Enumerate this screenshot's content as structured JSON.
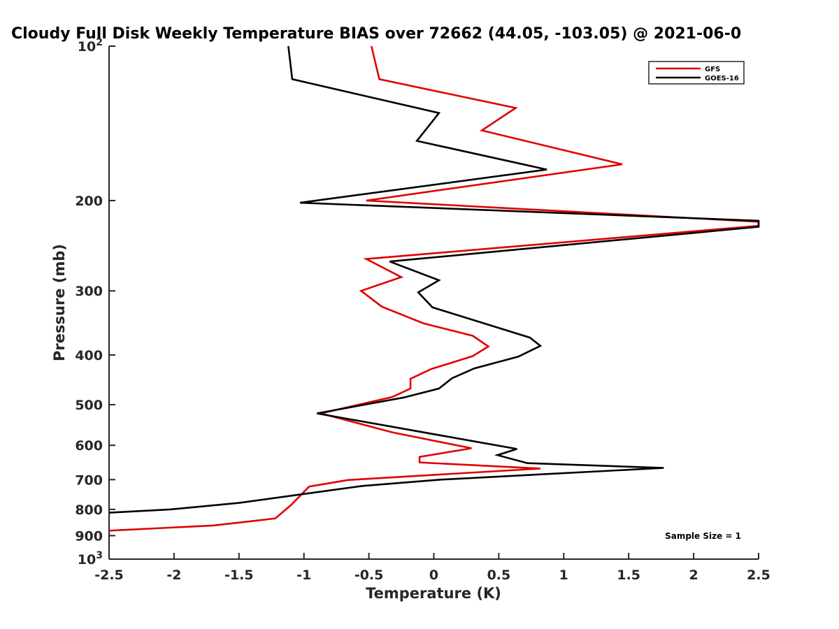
{
  "chart_data": {
    "type": "line",
    "title": "Cloudy Full Disk Weekly Temperature BIAS over 72662 (44.05, -103.05) @ 2021-06-0",
    "xlabel": "Temperature (K)",
    "ylabel": "Pressure (mb)",
    "xlim": [
      -2.5,
      2.5
    ],
    "ylim": [
      100,
      1000
    ],
    "y_scale": "log",
    "y_reversed": true,
    "x_ticks": [
      "-2.5",
      "-2",
      "-1.5",
      "-1",
      "-0.5",
      "0",
      "0.5",
      "1",
      "1.5",
      "2",
      "2.5"
    ],
    "y_ticks": [
      {
        "value": 100,
        "base": "10",
        "exp": "2"
      },
      {
        "value": 200,
        "label": "200"
      },
      {
        "value": 300,
        "label": "300"
      },
      {
        "value": 400,
        "label": "400"
      },
      {
        "value": 500,
        "label": "500"
      },
      {
        "value": 600,
        "label": "600"
      },
      {
        "value": 700,
        "label": "700"
      },
      {
        "value": 800,
        "label": "800"
      },
      {
        "value": 900,
        "label": "900"
      },
      {
        "value": 1000,
        "base": "10",
        "exp": "3"
      }
    ],
    "legend_position": "top-right",
    "annotation": "Sample Size = 1",
    "series": [
      {
        "name": "GFS",
        "color": "#e00000",
        "points": [
          [
            -0.48,
            100
          ],
          [
            -0.42,
            116
          ],
          [
            0.63,
            132
          ],
          [
            0.37,
            146
          ],
          [
            1.45,
            170
          ],
          [
            -0.52,
            200
          ],
          [
            2.5,
            220
          ],
          [
            2.5,
            224
          ],
          [
            -0.52,
            260
          ],
          [
            -0.25,
            282
          ],
          [
            -0.56,
            300
          ],
          [
            -0.4,
            322
          ],
          [
            -0.08,
            347
          ],
          [
            0.3,
            367
          ],
          [
            0.42,
            385
          ],
          [
            0.3,
            402
          ],
          [
            -0.02,
            426
          ],
          [
            -0.18,
            445
          ],
          [
            -0.18,
            465
          ],
          [
            -0.32,
            483
          ],
          [
            -0.87,
            520
          ],
          [
            -0.32,
            566
          ],
          [
            0.29,
            608
          ],
          [
            -0.11,
            632
          ],
          [
            -0.11,
            648
          ],
          [
            0.82,
            666
          ],
          [
            -0.66,
            701
          ],
          [
            -0.96,
            722
          ],
          [
            -1.1,
            785
          ],
          [
            -1.22,
            833
          ],
          [
            -1.7,
            860
          ],
          [
            -2.5,
            880
          ]
        ]
      },
      {
        "name": "GOES-16",
        "color": "#000000",
        "points": [
          [
            -1.12,
            100
          ],
          [
            -1.09,
            116
          ],
          [
            0.04,
            135
          ],
          [
            -0.13,
            153
          ],
          [
            0.87,
            174
          ],
          [
            -1.03,
            202
          ],
          [
            2.5,
            219
          ],
          [
            2.5,
            225
          ],
          [
            -0.34,
            263
          ],
          [
            0.04,
            286
          ],
          [
            -0.12,
            302
          ],
          [
            -0.01,
            323
          ],
          [
            0.74,
            370
          ],
          [
            0.82,
            384
          ],
          [
            0.65,
            403
          ],
          [
            0.31,
            425
          ],
          [
            0.14,
            444
          ],
          [
            0.04,
            465
          ],
          [
            -0.23,
            484
          ],
          [
            -0.9,
            520
          ],
          [
            0.64,
            610
          ],
          [
            0.49,
            627
          ],
          [
            0.72,
            650
          ],
          [
            1.77,
            664
          ],
          [
            0.05,
            700
          ],
          [
            -0.55,
            720
          ],
          [
            -1.5,
            777
          ],
          [
            -2.03,
            800
          ],
          [
            -2.5,
            812
          ]
        ]
      }
    ]
  }
}
